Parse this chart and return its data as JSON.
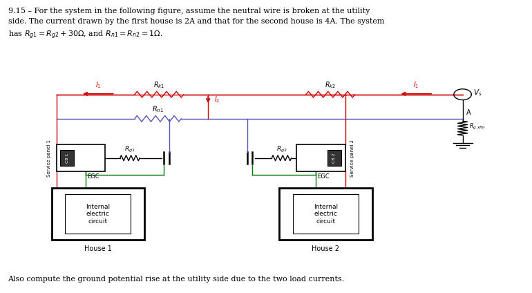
{
  "bg_color": "#ffffff",
  "line_color": "#000000",
  "red_color": "#cc0000",
  "blue_color": "#5555bb",
  "green_color": "#007700",
  "gray_color": "#555555",
  "title_line1": "9.15 – For the system in the following figure, assume the neutral wire is broken at the utility",
  "title_line2": "side. The current drawn by the first house is 2A and that for the second house is 4A. The system",
  "title_line3": "has $R_{g1} = R_{g2} + 30\\Omega$, and $R_{n1} = R_{n2} = 1\\Omega$.",
  "footer": "Also compute the ground potential rise at the utility side due to the two load currents."
}
